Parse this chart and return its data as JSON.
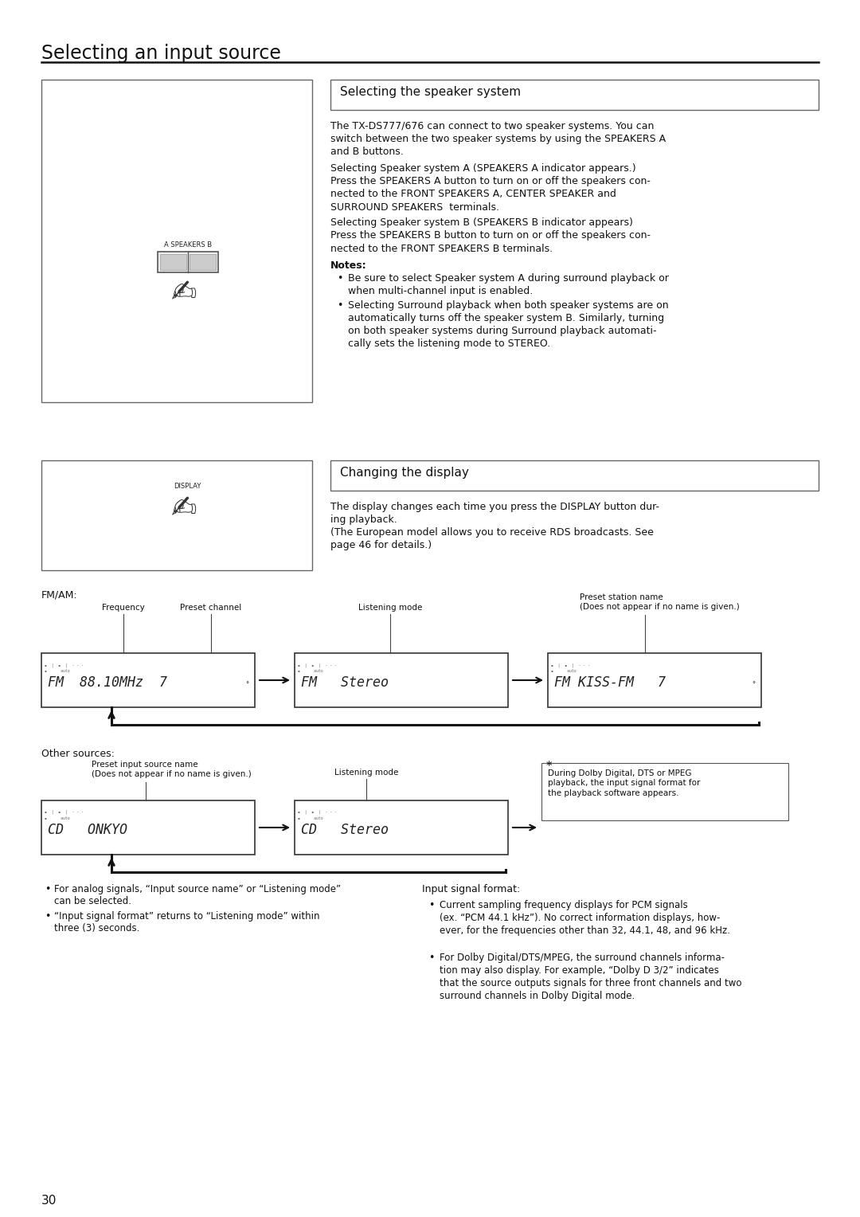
{
  "page_title": "Selecting an input source",
  "bg_color": "#ffffff",
  "page_number": "30",
  "section1_title": "Selecting the speaker system",
  "section1_para1": "The TX-DS777/676 can connect to two speaker systems. You can\nswitch between the two speaker systems by using the SPEAKERS A\nand B buttons.",
  "section1_para2": "Selecting Speaker system A (SPEAKERS A indicator appears.)\nPress the SPEAKERS A button to turn on or off the speakers con-\nnected to the FRONT SPEAKERS A, CENTER SPEAKER and\nSURROUND SPEAKERS  terminals.",
  "section1_para3": "Selecting Speaker system B (SPEAKERS B indicator appears)\nPress the SPEAKERS B button to turn on or off the speakers con-\nnected to the FRONT SPEAKERS B terminals.",
  "section1_notes_title": "Notes:",
  "section1_note1": "Be sure to select Speaker system A during surround playback or\nwhen multi-channel input is enabled.",
  "section1_note2": "Selecting Surround playback when both speaker systems are on\nautomatically turns off the speaker system B. Similarly, turning\non both speaker systems during Surround playback automati-\ncally sets the listening mode to STEREO.",
  "section2_title": "Changing the display",
  "section2_para1": "The display changes each time you press the DISPLAY button dur-\ning playback.\n(The European model allows you to receive RDS broadcasts. See\npage 46 for details.)",
  "fm_label": "FM/AM:",
  "fm_freq_label": "Frequency",
  "fm_preset_label": "Preset channel",
  "fm_listen_label": "Listening mode",
  "fm_station_label": "Preset station name\n(Does not appear if no name is given.)",
  "fm_display1": "FM  88.10MHz  7",
  "fm_display2": "FM   Stereo",
  "fm_display3": "FM KISS-FM   7",
  "other_label": "Other sources:",
  "other_preset_label": "Preset input source name\n(Does not appear if no name is given.)",
  "other_listen_label": "Listening mode",
  "other_star_label": "*",
  "other_display1": "CD   ONKYO",
  "other_display2": "CD   Stereo",
  "other_note": "During Dolby Digital, DTS or MPEG\nplayback, the input signal format for\nthe playback software appears.",
  "bullet1_part1": "For analog signals, “Input source name” or “Listening mode”",
  "bullet1_part2": "can be selected.",
  "bullet2_part1": "“Input signal format” returns to “Listening mode” within",
  "bullet2_part2": "three (3) seconds.",
  "input_signal_title": "Input signal format:",
  "input_signal_bullet1": "Current sampling frequency displays for PCM signals\n(ex. “PCM 44.1 kHz”). No correct information displays, how-\never, for the frequencies other than 32, 44.1, 48, and 96 kHz.",
  "input_signal_bullet2": "For Dolby Digital/DTS/MPEG, the surround channels informa-\ntion may also display. For example, “Dolby D 3/2” indicates\nthat the source outputs signals for three front channels and two\nsurround channels in Dolby Digital mode."
}
